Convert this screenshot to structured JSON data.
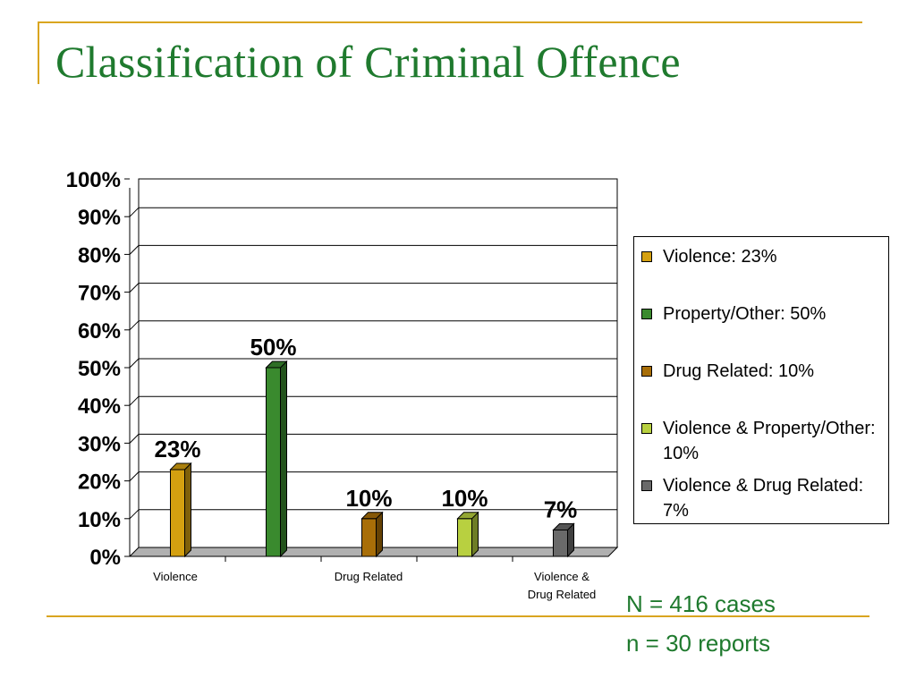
{
  "slide": {
    "title": "Classification of Criminal Offence",
    "notes": [
      "N = 416 cases",
      "n = 30 reports"
    ]
  },
  "colors": {
    "accent": "#d9a520",
    "title": "#1f7a2e"
  },
  "chart_data": {
    "type": "bar",
    "categories": [
      "Violence",
      "Property/Other",
      "Drug Related",
      "Violence & Property/Other",
      "Violence & Drug Related"
    ],
    "visible_x_labels": [
      "Violence",
      "Drug Related",
      "Violence & Drug Related"
    ],
    "values": [
      23,
      50,
      10,
      10,
      7
    ],
    "data_labels": [
      "23%",
      "50%",
      "10%",
      "10%",
      "7%"
    ],
    "series_colors": [
      "#d4a010",
      "#3a8a2e",
      "#a86e08",
      "#b8d040",
      "#6a6a6a"
    ],
    "y_ticks": [
      "0%",
      "10%",
      "20%",
      "30%",
      "40%",
      "50%",
      "60%",
      "70%",
      "80%",
      "90%",
      "100%"
    ],
    "ylim": [
      0,
      100
    ],
    "grid": true,
    "legend_position": "right",
    "legend": [
      "Violence: 23%",
      "Property/Other: 50%",
      "Drug Related: 10%",
      "Violence & Property/Other: 10%",
      "Violence & Drug Related: 7%"
    ]
  }
}
